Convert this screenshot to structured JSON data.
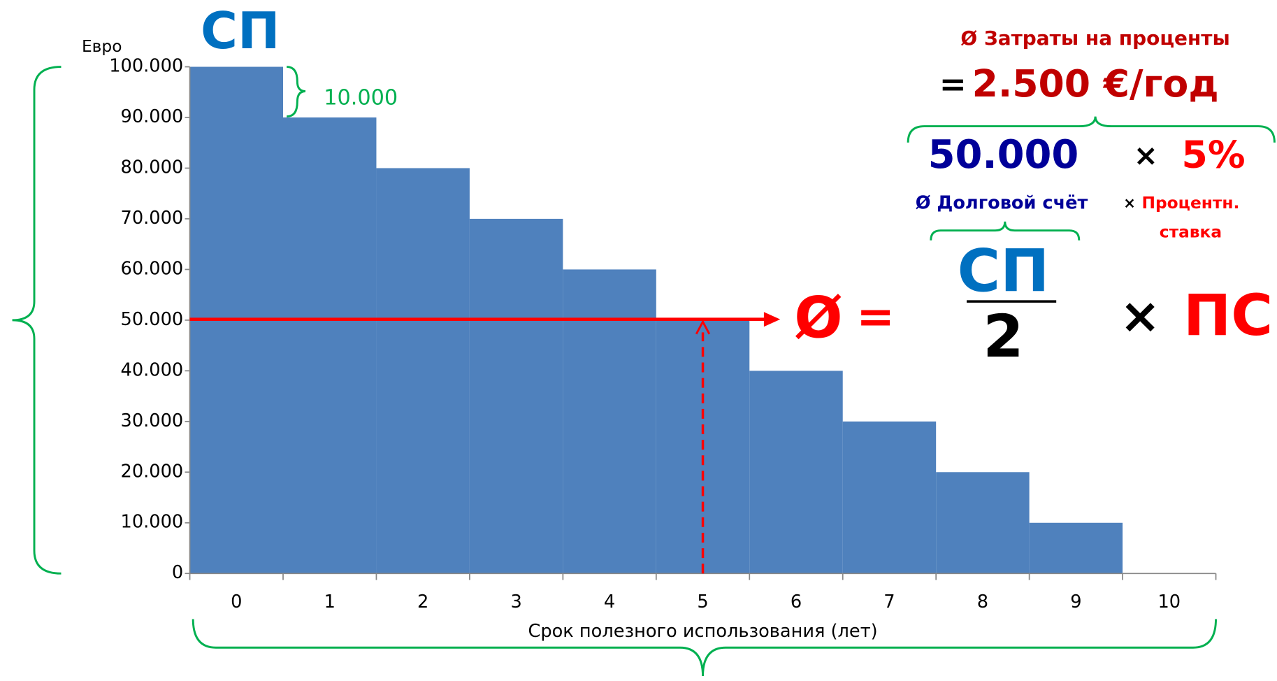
{
  "chart_data": {
    "type": "bar",
    "y_unit_label": "Евро",
    "xlabel": "Срок полезного использования (лет)",
    "categories": [
      "0",
      "1",
      "2",
      "3",
      "4",
      "5",
      "6",
      "7",
      "8",
      "9",
      "10"
    ],
    "values": [
      100000,
      90000,
      80000,
      70000,
      60000,
      50000,
      40000,
      30000,
      20000,
      10000,
      0
    ],
    "color": "#4f81bd",
    "ylim": [
      0,
      100000
    ],
    "yticks": [
      0,
      {
        "value": 10000,
        "label": "10.000"
      },
      {
        "value": 20000,
        "label": "20.000"
      },
      {
        "value": 30000,
        "label": "30.000"
      },
      {
        "value": 40000,
        "label": "40.000"
      },
      {
        "value": 50000,
        "label": "50.000"
      },
      {
        "value": 60000,
        "label": "60.000"
      },
      {
        "value": 70000,
        "label": "70.000"
      },
      {
        "value": 80000,
        "label": "80.000"
      },
      {
        "value": 90000,
        "label": "90.000"
      },
      {
        "value": 100000,
        "label": "100.000"
      }
    ],
    "annotations": [
      "СП",
      "10.000",
      "Ø Затраты на проценты",
      "=",
      "2.500 €/год",
      "50.000",
      "×",
      "5%",
      "Ø Долговой счёт",
      "×",
      "Процентн.",
      "ставка",
      "Ø",
      "=",
      "СП",
      "2",
      "×",
      "ПС"
    ]
  }
}
